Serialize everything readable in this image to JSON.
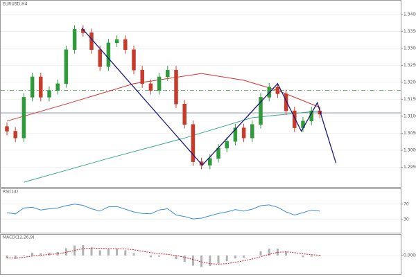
{
  "chart_data": [
    {
      "type": "candlestick",
      "title": "EURUSD,H4",
      "up_color": "#2e9a3a",
      "down_color": "#c83a2a",
      "open": [
        1.307,
        1.3056,
        1.3036,
        1.3156,
        1.3216,
        1.3156,
        1.3176,
        1.3196,
        1.3296,
        1.3356,
        1.3346,
        1.3296,
        1.3246,
        1.3316,
        1.3326,
        1.3296,
        1.3236,
        1.3196,
        1.3176,
        1.3216,
        1.3236,
        1.3136,
        1.3076,
        1.2966,
        1.2956,
        1.2976,
        1.3006,
        1.3026,
        1.3066,
        1.3036,
        1.3076,
        1.3156,
        1.3186,
        1.3166,
        1.3116,
        1.3066,
        1.3086,
        1.3116
      ],
      "high": [
        1.3082,
        1.3068,
        1.3168,
        1.3228,
        1.3228,
        1.3188,
        1.3208,
        1.3308,
        1.3368,
        1.3368,
        1.3358,
        1.3308,
        1.3328,
        1.3338,
        1.3338,
        1.3308,
        1.3248,
        1.3208,
        1.3228,
        1.3248,
        1.3248,
        1.3148,
        1.3088,
        1.2978,
        1.2988,
        1.3018,
        1.3038,
        1.3078,
        1.3078,
        1.3088,
        1.3168,
        1.3198,
        1.3198,
        1.3178,
        1.3128,
        1.3098,
        1.3128,
        1.3128
      ],
      "low": [
        1.3044,
        1.3024,
        1.3024,
        1.3144,
        1.3144,
        1.3144,
        1.3164,
        1.3184,
        1.3284,
        1.3334,
        1.3284,
        1.3234,
        1.3234,
        1.3304,
        1.3284,
        1.3224,
        1.3184,
        1.3164,
        1.3164,
        1.3204,
        1.3124,
        1.3064,
        1.2954,
        1.2944,
        1.2944,
        1.2964,
        1.2994,
        1.3014,
        1.3024,
        1.3024,
        1.3064,
        1.3144,
        1.3154,
        1.3104,
        1.3054,
        1.3054,
        1.3074,
        1.3094
      ],
      "close": [
        1.3056,
        1.3036,
        1.3156,
        1.3216,
        1.3156,
        1.3176,
        1.3196,
        1.3296,
        1.3356,
        1.3346,
        1.3296,
        1.3246,
        1.3316,
        1.3326,
        1.3296,
        1.3236,
        1.3196,
        1.3176,
        1.3216,
        1.3236,
        1.3136,
        1.3076,
        1.2966,
        1.2956,
        1.2976,
        1.3006,
        1.3026,
        1.3066,
        1.3036,
        1.3076,
        1.3156,
        1.3186,
        1.3166,
        1.3116,
        1.3066,
        1.3086,
        1.3116,
        1.3106
      ],
      "ylim": [
        1.29,
        1.3426
      ],
      "yticks": [
        {
          "value": 1.295,
          "label": "1.2950"
        },
        {
          "value": 1.3,
          "label": "1.3000"
        },
        {
          "value": 1.305,
          "label": "1.3050"
        },
        {
          "value": 1.31,
          "label": "1.3100"
        },
        {
          "value": 1.315,
          "label": "1.3150"
        },
        {
          "value": 1.32,
          "label": "1.3200"
        },
        {
          "value": 1.325,
          "label": "1.3250"
        },
        {
          "value": 1.33,
          "label": "1.3300"
        },
        {
          "value": 1.335,
          "label": "1.3350"
        },
        {
          "value": 1.34,
          "label": "1.3400"
        }
      ],
      "overlays": [
        {
          "color": "#d83030",
          "x": [
            0,
            7,
            15,
            23,
            28,
            32,
            37
          ],
          "values": [
            1.3086,
            1.3136,
            1.3196,
            1.3226,
            1.3206,
            1.3176,
            1.3126
          ]
        },
        {
          "color": "#3aa890",
          "x": [
            2,
            12,
            21,
            29,
            37
          ],
          "values": [
            1.2906,
            1.2976,
            1.3036,
            1.3096,
            1.3116
          ]
        }
      ],
      "pattern": {
        "color": "#1a1a7a",
        "x": [
          8.85,
          23.1,
          32,
          34.8,
          36.7,
          38.9
        ],
        "values": [
          1.336,
          1.2956,
          1.3196,
          1.3056,
          1.314,
          1.2962
        ]
      },
      "hlines": [
        {
          "value": 1.3176,
          "color": "#3aa63a",
          "dash": true
        },
        {
          "value": 1.311,
          "color": "#6070a0",
          "dash": false
        }
      ]
    },
    {
      "type": "line",
      "title": "RSI(14)",
      "color": "#3a8ad8",
      "ylim": [
        0,
        100
      ],
      "yticks": [
        30,
        70
      ],
      "values": [
        48,
        45,
        60,
        62,
        55,
        58,
        60,
        66,
        70,
        67,
        58,
        52,
        63,
        64,
        57,
        50,
        46,
        45,
        55,
        58,
        42,
        38,
        32,
        34,
        40,
        46,
        50,
        56,
        52,
        57,
        66,
        68,
        62,
        50,
        42,
        48,
        55,
        52
      ]
    },
    {
      "type": "macd",
      "title": "MACD(12,26,9)",
      "color": "#b0b0b0",
      "signal_color": "#d02030",
      "ylim": [
        -0.006,
        0.006
      ],
      "yticks": [
        {
          "value": 0,
          "label": "0.0000"
        }
      ],
      "values": [
        -0.001,
        -0.0012,
        0.0002,
        0.001,
        0.0008,
        0.001,
        0.0012,
        0.0025,
        0.0035,
        0.0036,
        0.0028,
        0.0018,
        0.0022,
        0.0024,
        0.0018,
        0.0008,
        0.0,
        -0.0006,
        -0.0004,
        0.0,
        -0.0012,
        -0.0022,
        -0.0035,
        -0.004,
        -0.0036,
        -0.0028,
        -0.002,
        -0.001,
        -0.0008,
        0.0,
        0.0015,
        0.0024,
        0.0024,
        0.0014,
        0.0,
        -0.0006,
        -0.0004,
        -0.0002
      ],
      "signal": [
        -0.0008,
        -0.0009,
        -0.0006,
        -0.0002,
        0.0001,
        0.0004,
        0.0006,
        0.0011,
        0.0018,
        0.0024,
        0.0026,
        0.0025,
        0.0024,
        0.0024,
        0.0023,
        0.002,
        0.0015,
        0.001,
        0.0006,
        0.0004,
        0.0,
        -0.0006,
        -0.0014,
        -0.0022,
        -0.0028,
        -0.003,
        -0.0028,
        -0.0023,
        -0.0018,
        -0.0012,
        -0.0004,
        0.0004,
        0.0011,
        0.0013,
        0.001,
        0.0006,
        0.0003,
        0.0001
      ]
    }
  ]
}
